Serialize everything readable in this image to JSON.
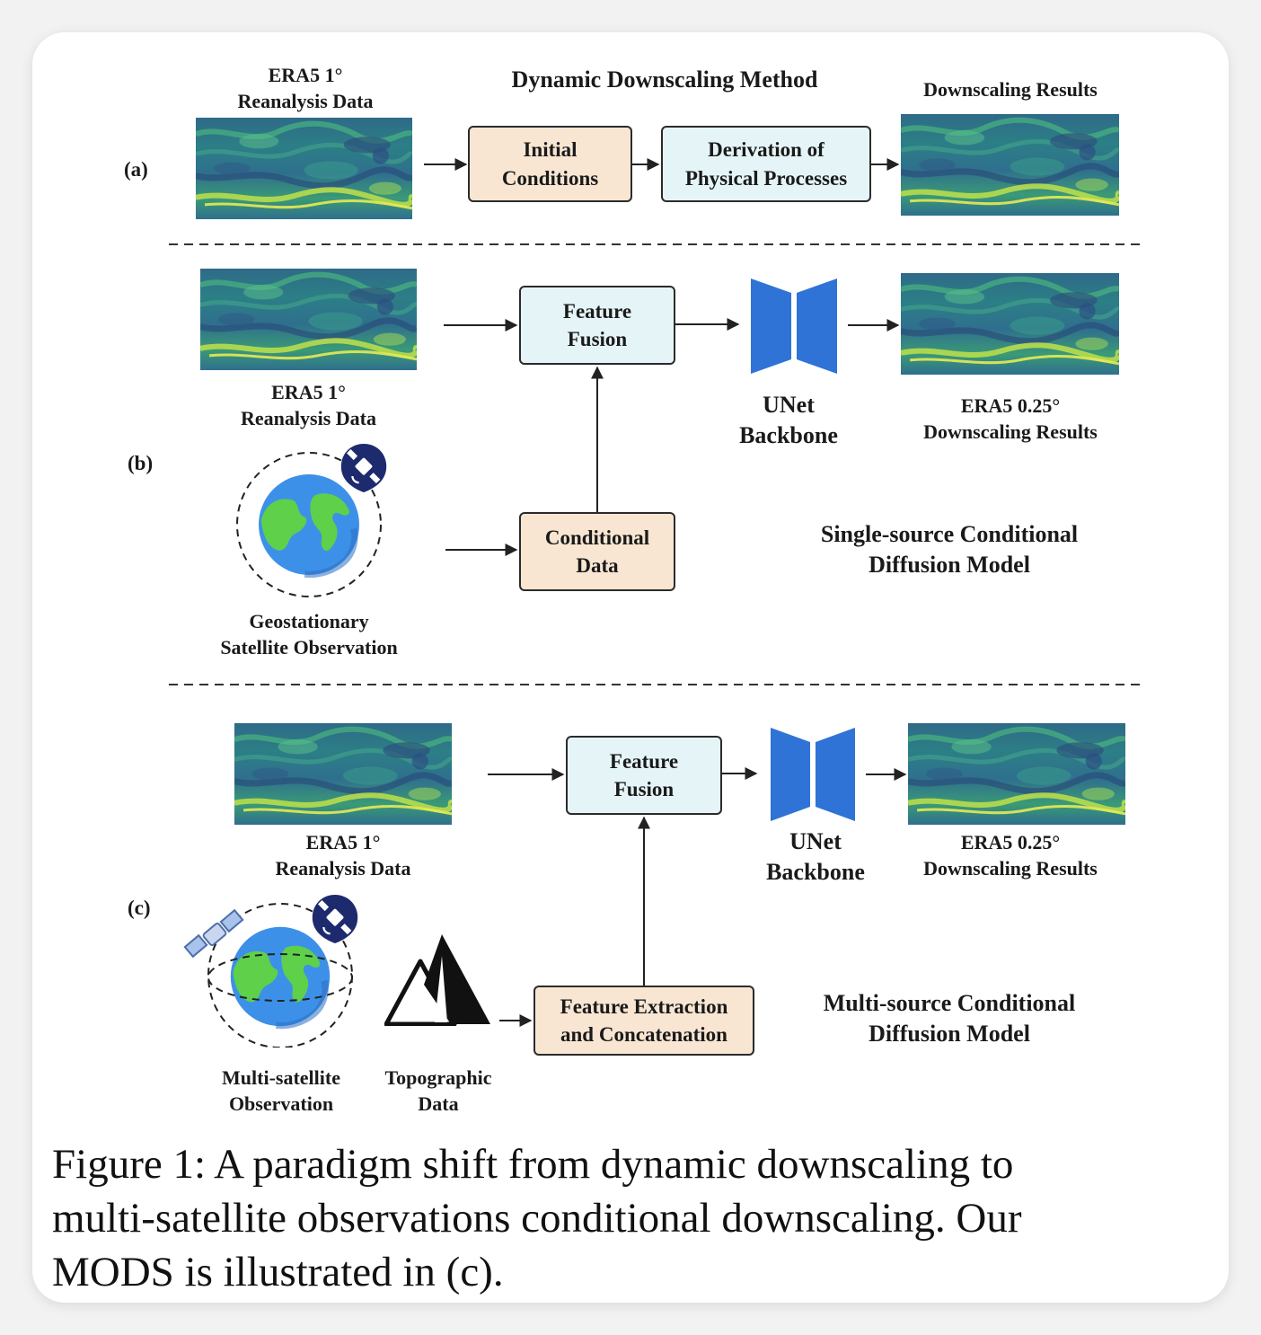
{
  "panel_a": {
    "tag": "(a)",
    "input_label": [
      "ERA5 1°",
      "Reanalysis Data"
    ],
    "method_title": "Dynamic Downscaling Method",
    "box_initial": [
      "Initial",
      "Conditions"
    ],
    "box_derivation": [
      "Derivation of",
      "Physical Processes"
    ],
    "output_label": "Downscaling Results"
  },
  "panel_b": {
    "tag": "(b)",
    "input_label": [
      "ERA5 1°",
      "Reanalysis Data"
    ],
    "feature_fusion": [
      "Feature",
      "Fusion"
    ],
    "conditional_data": [
      "Conditional",
      "Data"
    ],
    "unet": [
      "UNet",
      "Backbone"
    ],
    "output_label": [
      "ERA5 0.25°",
      "Downscaling Results"
    ],
    "satellite_label": [
      "Geostationary",
      "Satellite Observation"
    ],
    "model_name": [
      "Single-source Conditional",
      "Diffusion Model"
    ]
  },
  "panel_c": {
    "tag": "(c)",
    "input_label": [
      "ERA5 1°",
      "Reanalysis Data"
    ],
    "feature_fusion": [
      "Feature",
      "Fusion"
    ],
    "feature_extraction": [
      "Feature Extraction",
      "and Concatenation"
    ],
    "unet": [
      "UNet",
      "Backbone"
    ],
    "output_label": [
      "ERA5 0.25°",
      "Downscaling Results"
    ],
    "satellite_label": [
      "Multi-satellite",
      "Observation"
    ],
    "topo_label": [
      "Topographic",
      "Data"
    ],
    "model_name": [
      "Multi-source Conditional",
      "Diffusion Model"
    ]
  },
  "caption": [
    "Figure 1:  A paradigm shift from dynamic downscaling to",
    "multi-satellite observations conditional downscaling.  Our",
    "MODS is illustrated in (c)."
  ],
  "colors": {
    "peach": "#f8e6d3",
    "cyan": "#e5f5f7",
    "unet_blue": "#2f73d6",
    "earth_blue": "#3d90e8",
    "earth_green": "#5ed04a",
    "satellite_navy": "#1d2a6e"
  },
  "icons": [
    "earth-icon",
    "satellite-icon",
    "mountain-icon",
    "unet-icon",
    "arrow-icon"
  ]
}
